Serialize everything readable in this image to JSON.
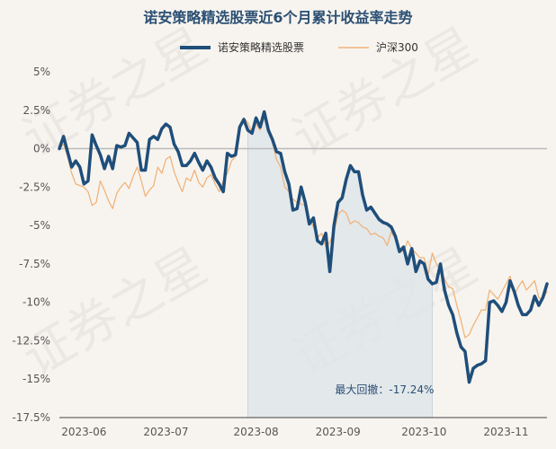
{
  "chart_data": {
    "type": "line",
    "title": "诺安策略精选股票近6个月累计收益率走势",
    "colors": {
      "fund": "#1f4e7a",
      "index": "#f0b47a",
      "drawdown": "#dfe5ea",
      "zero": "#bbbbbb"
    },
    "x_labels": [
      "2023-06",
      "2023-07",
      "2023-08",
      "2023-09",
      "2023-10",
      "2023-11"
    ],
    "x_label_positions": [
      6,
      26,
      48,
      68,
      89,
      109
    ],
    "ylim": [
      -17.5,
      5
    ],
    "y_ticks": [
      5,
      2.5,
      0,
      -2.5,
      -5,
      -7.5,
      -10,
      -12.5,
      -15,
      -17.5
    ],
    "y_tick_labels": [
      "5%",
      "2.5%",
      "0%",
      "-2.5%",
      "-5%",
      "-7.5%",
      "-10%",
      "-12.5%",
      "-15%",
      "-17.5%"
    ],
    "drawdown_range": [
      46,
      91
    ],
    "annotation": "最大回撤：-17.24%",
    "series": [
      {
        "name": "诺安策略精选股票",
        "values": [
          0,
          0.8,
          -0.2,
          -1.2,
          -0.8,
          -1.2,
          -2.3,
          -2.1,
          0.9,
          0.2,
          -0.4,
          -1.3,
          -0.5,
          -1.3,
          0.2,
          0.1,
          0.2,
          1.0,
          0.7,
          0.4,
          -1.4,
          -1.4,
          0.6,
          0.8,
          0.6,
          1.3,
          1.6,
          1.4,
          0.3,
          -0.2,
          -1.1,
          -1.1,
          -0.8,
          -0.3,
          -0.9,
          -1.4,
          -0.8,
          -1.2,
          -1.9,
          -2.3,
          -2.8,
          -0.3,
          -0.5,
          -0.4,
          1.4,
          1.9,
          1.2,
          1.0,
          2.0,
          1.4,
          2.4,
          1.2,
          0.6,
          -0.2,
          -0.3,
          -1.5,
          -2.3,
          -4.0,
          -3.9,
          -2.5,
          -3.5,
          -4.9,
          -4.5,
          -6.0,
          -6.2,
          -5.5,
          -8.0,
          -5.0,
          -3.5,
          -3.2,
          -2.0,
          -1.1,
          -1.5,
          -1.5,
          -3.0,
          -4.0,
          -3.8,
          -4.2,
          -4.6,
          -4.8,
          -4.9,
          -5.1,
          -5.7,
          -6.7,
          -6.4,
          -7.5,
          -6.5,
          -8.0,
          -7.3,
          -7.5,
          -8.5,
          -8.8,
          -8.7,
          -7.5,
          -9.2,
          -10.2,
          -10.8,
          -12.0,
          -12.9,
          -13.2,
          -15.2,
          -14.3,
          -14.1,
          -14.0,
          -13.8,
          -10.0,
          -9.9,
          -10.2,
          -10.6,
          -10.0,
          -8.6,
          -9.3,
          -10.2,
          -10.8,
          -10.8,
          -10.5,
          -9.6,
          -10.2,
          -9.7,
          -8.8
        ]
      },
      {
        "name": "沪深300",
        "values": [
          0,
          0.3,
          -0.5,
          -1.6,
          -2.3,
          -2.4,
          -2.5,
          -2.8,
          -3.7,
          -3.5,
          -2.1,
          -2.7,
          -3.4,
          -3.9,
          -2.9,
          -2.5,
          -2.2,
          -2.6,
          -1.8,
          -1.2,
          -2.1,
          -3.1,
          -2.7,
          -2.4,
          -1.2,
          -1.6,
          -0.7,
          -0.5,
          -1.5,
          -2.2,
          -2.8,
          -1.9,
          -2.1,
          -1.4,
          -2.2,
          -2.5,
          -1.9,
          -1.7,
          -2.3,
          -2.8,
          -2.1,
          -1.6,
          -0.8,
          -0.5,
          1.5,
          2.0,
          1.7,
          1.1,
          1.6,
          1.2,
          2.0,
          1.3,
          0.4,
          -0.7,
          -1.2,
          -2.5,
          -2.8,
          -3.3,
          -3.5,
          -3.6,
          -3.7,
          -4.6,
          -5.1,
          -5.8,
          -5.5,
          -6.4,
          -6.1,
          -5.4,
          -4.3,
          -4.0,
          -4.2,
          -4.9,
          -4.7,
          -4.8,
          -5.1,
          -5.2,
          -5.6,
          -5.5,
          -5.7,
          -5.8,
          -6.3,
          -5.4,
          -5.9,
          -6.6,
          -6.7,
          -6.0,
          -6.5,
          -6.8,
          -7.1,
          -7.1,
          -8.2,
          -6.8,
          -7.5,
          -7.9,
          -8.5,
          -9.0,
          -9.1,
          -10.2,
          -11.2,
          -12.3,
          -12.1,
          -11.5,
          -11.0,
          -10.5,
          -10.5,
          -9.2,
          -9.5,
          -9.8,
          -9.3,
          -8.8,
          -8.3,
          -9.5,
          -9.0,
          -8.6,
          -9.2,
          -8.9,
          -8.6,
          -9.7,
          -9.8,
          -9.3
        ]
      }
    ]
  },
  "watermark": "证券之星"
}
